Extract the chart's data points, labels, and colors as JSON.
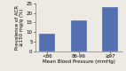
{
  "categories": [
    "<86",
    "86-96",
    "≥97"
  ],
  "values": [
    9,
    16,
    23
  ],
  "bar_color": "#5570b0",
  "ylabel_line1": "Prevalence of ACR",
  "ylabel_line2": "≥150 mg/g (%)",
  "xlabel": "Mean Blood Pressure (mmHg)",
  "ylim": [
    0,
    25
  ],
  "yticks": [
    0,
    5,
    10,
    15,
    20,
    25
  ],
  "label_fontsize": 4.0,
  "tick_fontsize": 4.0,
  "bar_width": 0.5,
  "bg_color": "#ede9e3"
}
